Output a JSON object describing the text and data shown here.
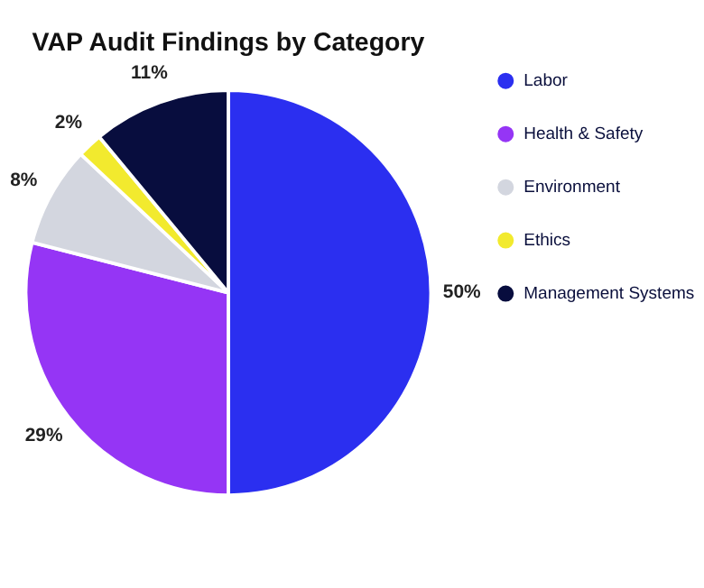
{
  "chart_data": {
    "type": "pie",
    "title": "VAP Audit Findings by Category",
    "categories": [
      "Labor",
      "Health & Safety",
      "Environment",
      "Ethics",
      "Management Systems"
    ],
    "values": [
      50,
      29,
      8,
      2,
      11
    ],
    "colors": [
      "#2b2ff0",
      "#9535f5",
      "#d3d6df",
      "#f2ea2e",
      "#080d3e"
    ],
    "value_labels": [
      "50%",
      "29%",
      "8%",
      "2%",
      "11%"
    ],
    "legend": "right"
  }
}
